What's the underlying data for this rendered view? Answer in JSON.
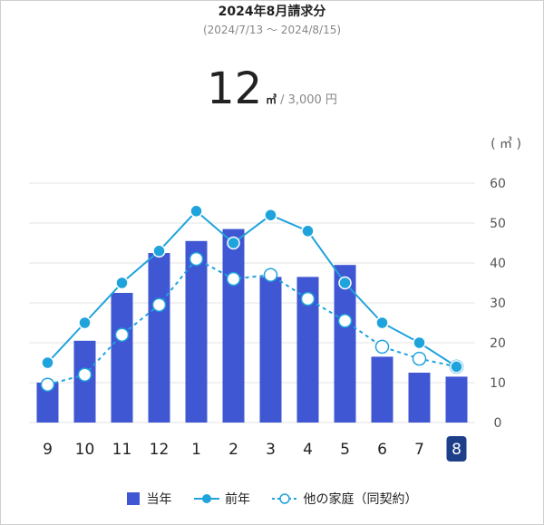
{
  "header": {
    "title": "2024年8月請求分",
    "period": "(2024/7/13 〜 2024/8/15)"
  },
  "summary": {
    "amount": "12",
    "unit": "㎥",
    "separator": "/",
    "price": "3,000 円"
  },
  "colors": {
    "bar": "#3f57d3",
    "line": "#1fa3dc",
    "grid": "#e3e3e3",
    "highlight": "#1d3f8a"
  },
  "chart_data": {
    "type": "bar",
    "unit_label": "( ㎥ )",
    "categories": [
      "9",
      "10",
      "11",
      "12",
      "1",
      "2",
      "3",
      "4",
      "5",
      "6",
      "7",
      "8"
    ],
    "highlighted_category": "8",
    "ylim": [
      0,
      60
    ],
    "yticks": [
      0,
      10,
      20,
      30,
      40,
      50,
      60
    ],
    "grid": true,
    "legend_position": "bottom",
    "series": [
      {
        "name": "当年",
        "kind": "bar",
        "values": [
          10,
          20.5,
          32.5,
          42.5,
          45.5,
          48.5,
          36.5,
          36.5,
          39.5,
          16.5,
          12.5,
          11.5
        ]
      },
      {
        "name": "前年",
        "kind": "line-solid",
        "values": [
          15,
          25,
          35,
          43,
          53,
          45,
          52,
          48,
          35,
          25,
          20,
          14
        ]
      },
      {
        "name": "他の家庭（同契約）",
        "kind": "line-dashed",
        "values": [
          9.5,
          12,
          22,
          29.5,
          41,
          36,
          37,
          31,
          25.5,
          19,
          16,
          14
        ]
      }
    ]
  }
}
